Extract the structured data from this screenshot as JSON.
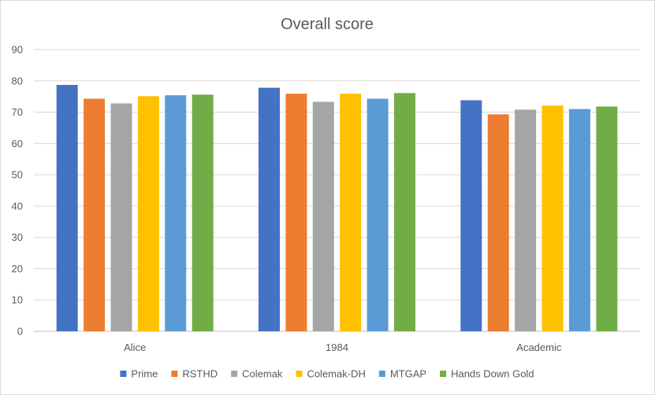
{
  "chart_data": {
    "type": "bar",
    "title": "Overall score",
    "xlabel": "",
    "ylabel": "",
    "categories": [
      "Alice",
      "1984",
      "Academic"
    ],
    "series": [
      {
        "name": "Prime",
        "color": "#4472C4",
        "values": [
          78.7,
          77.8,
          73.8
        ]
      },
      {
        "name": "RSTHD",
        "color": "#ED7D31",
        "values": [
          74.3,
          75.9,
          69.3
        ]
      },
      {
        "name": "Colemak",
        "color": "#A5A5A5",
        "values": [
          72.8,
          73.3,
          70.8
        ]
      },
      {
        "name": "Colemak-DH",
        "color": "#FFC000",
        "values": [
          75.1,
          75.9,
          72.1
        ]
      },
      {
        "name": "MTGAP",
        "color": "#5B9BD5",
        "values": [
          75.4,
          74.3,
          71.0
        ]
      },
      {
        "name": "Hands Down Gold",
        "color": "#70AD47",
        "values": [
          75.6,
          76.1,
          71.8
        ]
      }
    ],
    "ylim": [
      0,
      90
    ],
    "yticks": [
      0,
      10,
      20,
      30,
      40,
      50,
      60,
      70,
      80,
      90
    ],
    "grid": true,
    "legend_position": "bottom"
  }
}
